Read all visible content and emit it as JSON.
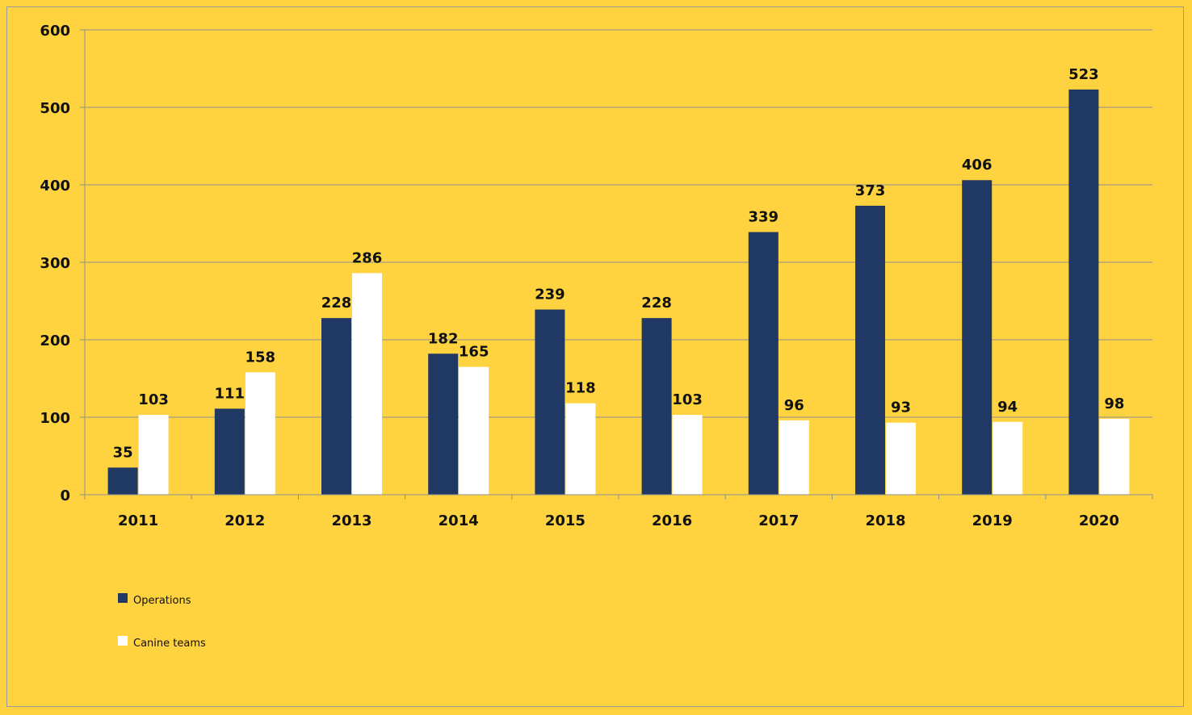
{
  "chart_data": {
    "type": "bar",
    "categories": [
      "2011",
      "2012",
      "2013",
      "2014",
      "2015",
      "2016",
      "2017",
      "2018",
      "2019",
      "2020"
    ],
    "series": [
      {
        "name": "Operations",
        "color": "#203864",
        "values": [
          35,
          111,
          228,
          182,
          239,
          228,
          339,
          373,
          406,
          523
        ]
      },
      {
        "name": "Canine teams",
        "color": "#FFFFFF",
        "values": [
          103,
          158,
          286,
          165,
          118,
          103,
          96,
          93,
          94,
          98
        ]
      }
    ],
    "ylim": [
      0,
      600
    ],
    "yticks": [
      0,
      100,
      200,
      300,
      400,
      500,
      600
    ],
    "grid": true,
    "legend": "bottom-left",
    "background_color": "#FFD23F",
    "gridline_color": "#8F8F8F"
  }
}
